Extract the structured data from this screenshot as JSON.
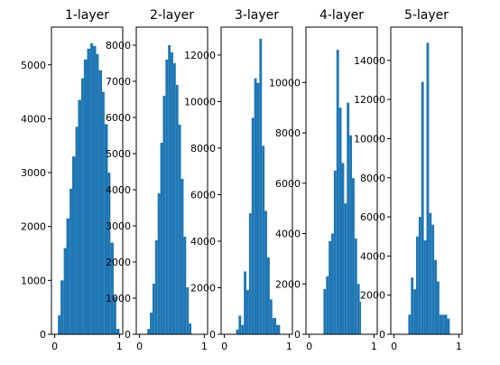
{
  "chart_data": [
    {
      "type": "bar",
      "title": "1-layer",
      "xlim": [
        -0.05,
        1.05
      ],
      "ylim": [
        0,
        5700
      ],
      "xticks": [
        0,
        1
      ],
      "yticks": [
        0,
        1000,
        2000,
        3000,
        4000,
        5000
      ],
      "bar_color": "#1f77b4",
      "bins": [
        [
          0.0,
          0.05,
          0
        ],
        [
          0.05,
          0.09,
          350
        ],
        [
          0.09,
          0.14,
          1000
        ],
        [
          0.14,
          0.18,
          1600
        ],
        [
          0.18,
          0.23,
          2150
        ],
        [
          0.23,
          0.27,
          2700
        ],
        [
          0.27,
          0.32,
          3300
        ],
        [
          0.32,
          0.36,
          3850
        ],
        [
          0.36,
          0.41,
          4350
        ],
        [
          0.41,
          0.45,
          4750
        ],
        [
          0.45,
          0.5,
          5100
        ],
        [
          0.5,
          0.55,
          5300
        ],
        [
          0.55,
          0.59,
          5400
        ],
        [
          0.59,
          0.64,
          5350
        ],
        [
          0.64,
          0.68,
          5200
        ],
        [
          0.68,
          0.73,
          4900
        ],
        [
          0.73,
          0.77,
          4500
        ],
        [
          0.77,
          0.82,
          3900
        ],
        [
          0.82,
          0.86,
          3000
        ],
        [
          0.86,
          0.91,
          1700
        ],
        [
          0.91,
          0.95,
          700
        ],
        [
          0.95,
          1.0,
          100
        ]
      ]
    },
    {
      "type": "bar",
      "title": "2-layer",
      "xlim": [
        -0.05,
        1.05
      ],
      "ylim": [
        0,
        8500
      ],
      "xticks": [
        0,
        1
      ],
      "yticks": [
        0,
        1000,
        2000,
        3000,
        4000,
        5000,
        6000,
        7000,
        8000
      ],
      "bar_color": "#1f77b4",
      "bins": [
        [
          0.12,
          0.16,
          150
        ],
        [
          0.16,
          0.2,
          600
        ],
        [
          0.2,
          0.24,
          1400
        ],
        [
          0.24,
          0.28,
          2600
        ],
        [
          0.28,
          0.32,
          3900
        ],
        [
          0.32,
          0.36,
          5300
        ],
        [
          0.36,
          0.4,
          6600
        ],
        [
          0.4,
          0.44,
          7600
        ],
        [
          0.44,
          0.48,
          8000
        ],
        [
          0.48,
          0.52,
          7800
        ],
        [
          0.52,
          0.56,
          7500
        ],
        [
          0.56,
          0.6,
          6900
        ],
        [
          0.6,
          0.64,
          5800
        ],
        [
          0.64,
          0.68,
          4300
        ],
        [
          0.68,
          0.72,
          2700
        ],
        [
          0.72,
          0.76,
          1300
        ],
        [
          0.76,
          0.8,
          300
        ]
      ]
    },
    {
      "type": "bar",
      "title": "3-layer",
      "xlim": [
        -0.05,
        1.05
      ],
      "ylim": [
        0,
        13200
      ],
      "xticks": [
        0,
        1
      ],
      "yticks": [
        0,
        2000,
        4000,
        6000,
        8000,
        10000,
        12000
      ],
      "bar_color": "#1f77b4",
      "bins": [
        [
          0.18,
          0.22,
          200
        ],
        [
          0.22,
          0.26,
          800
        ],
        [
          0.26,
          0.3,
          400
        ],
        [
          0.3,
          0.34,
          2700
        ],
        [
          0.34,
          0.38,
          1900
        ],
        [
          0.38,
          0.42,
          5200
        ],
        [
          0.42,
          0.46,
          9300
        ],
        [
          0.46,
          0.5,
          11000
        ],
        [
          0.5,
          0.54,
          10800
        ],
        [
          0.54,
          0.58,
          12700
        ],
        [
          0.58,
          0.62,
          8100
        ],
        [
          0.62,
          0.66,
          5300
        ],
        [
          0.66,
          0.7,
          3300
        ],
        [
          0.7,
          0.74,
          1500
        ],
        [
          0.74,
          0.8,
          700
        ],
        [
          0.8,
          0.86,
          400
        ]
      ]
    },
    {
      "type": "bar",
      "title": "4-layer",
      "xlim": [
        -0.05,
        1.05
      ],
      "ylim": [
        0,
        12200
      ],
      "xticks": [
        0,
        1
      ],
      "yticks": [
        0,
        2000,
        4000,
        6000,
        8000,
        10000
      ],
      "bar_color": "#1f77b4",
      "bins": [
        [
          0.22,
          0.26,
          1800
        ],
        [
          0.26,
          0.3,
          2300
        ],
        [
          0.3,
          0.34,
          3700
        ],
        [
          0.34,
          0.38,
          4000
        ],
        [
          0.38,
          0.42,
          6500
        ],
        [
          0.42,
          0.46,
          11300
        ],
        [
          0.46,
          0.5,
          9000
        ],
        [
          0.5,
          0.54,
          6800
        ],
        [
          0.54,
          0.58,
          5200
        ],
        [
          0.58,
          0.62,
          9200
        ],
        [
          0.62,
          0.66,
          7900
        ],
        [
          0.66,
          0.7,
          6200
        ],
        [
          0.7,
          0.74,
          3800
        ],
        [
          0.74,
          0.78,
          2000
        ],
        [
          0.78,
          0.8,
          1300
        ]
      ]
    },
    {
      "type": "bar",
      "title": "5-layer",
      "xlim": [
        -0.05,
        1.05
      ],
      "ylim": [
        0,
        15700
      ],
      "xticks": [
        0,
        1
      ],
      "yticks": [
        0,
        2000,
        4000,
        6000,
        8000,
        10000,
        12000,
        14000
      ],
      "bar_color": "#1f77b4",
      "bins": [
        [
          0.22,
          0.26,
          1000
        ],
        [
          0.26,
          0.3,
          2900
        ],
        [
          0.3,
          0.34,
          2300
        ],
        [
          0.34,
          0.38,
          5000
        ],
        [
          0.38,
          0.42,
          6000
        ],
        [
          0.42,
          0.46,
          12900
        ],
        [
          0.46,
          0.5,
          4800
        ],
        [
          0.5,
          0.54,
          14900
        ],
        [
          0.54,
          0.58,
          6200
        ],
        [
          0.58,
          0.62,
          5600
        ],
        [
          0.62,
          0.66,
          3800
        ],
        [
          0.66,
          0.7,
          2700
        ],
        [
          0.7,
          0.76,
          1000
        ],
        [
          0.76,
          0.82,
          1000
        ],
        [
          0.82,
          0.86,
          800
        ]
      ]
    }
  ]
}
